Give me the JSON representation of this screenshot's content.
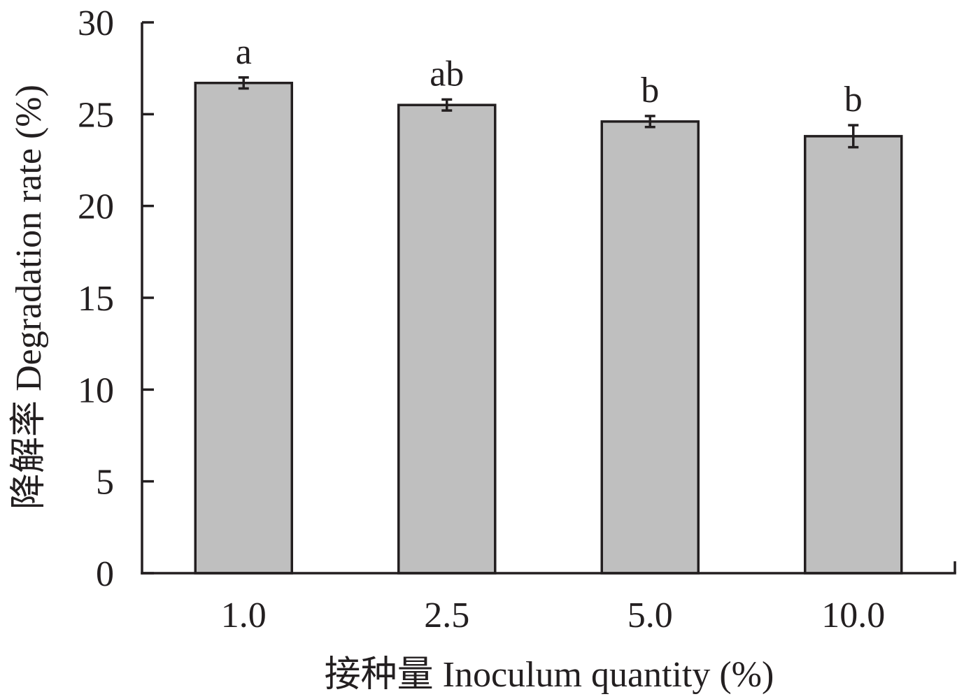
{
  "chart_data": {
    "type": "bar",
    "categories": [
      "1.0",
      "2.5",
      "5.0",
      "10.0"
    ],
    "values": [
      26.7,
      25.5,
      24.6,
      23.8
    ],
    "errors": [
      0.3,
      0.3,
      0.3,
      0.6
    ],
    "significance_labels": [
      "a",
      "ab",
      "b",
      "b"
    ],
    "xlabel": "接种量 Inoculum quantity (%)",
    "ylabel": "降解率 Degradation rate (%)",
    "ylim": [
      0,
      30
    ],
    "yticks": [
      0,
      5,
      10,
      15,
      20,
      25,
      30
    ],
    "grid": false,
    "colors": {
      "bar_fill": "#bfbfbf",
      "line": "#231f20"
    }
  }
}
